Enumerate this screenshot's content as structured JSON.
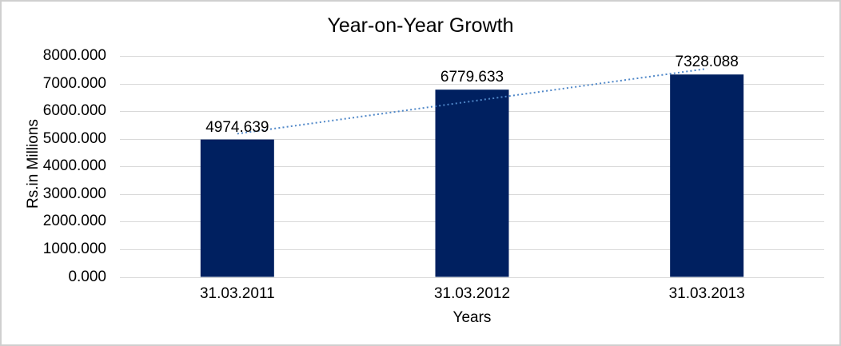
{
  "chart_data": {
    "type": "bar",
    "title": "Year-on-Year Growth",
    "xlabel": "Years",
    "ylabel": "Rs.in Millions",
    "categories": [
      "31.03.2011",
      "31.03.2012",
      "31.03.2013"
    ],
    "values": [
      4974.639,
      6779.633,
      7328.088
    ],
    "data_labels": [
      "4974.639",
      "6779.633",
      "7328.088"
    ],
    "ylim": [
      0,
      8000
    ],
    "ytick_step": 1000,
    "ytick_labels": [
      "8000.000",
      "7000.000",
      "6000.000",
      "5000.000",
      "4000.000",
      "3000.000",
      "2000.000",
      "1000.000",
      "0.000"
    ],
    "grid": true,
    "legend": "none",
    "bar_color": "#002060",
    "gridline_color": "#d9d9d9",
    "trendline": {
      "type": "linear",
      "style": "dotted",
      "color": "#4f87c8"
    }
  }
}
